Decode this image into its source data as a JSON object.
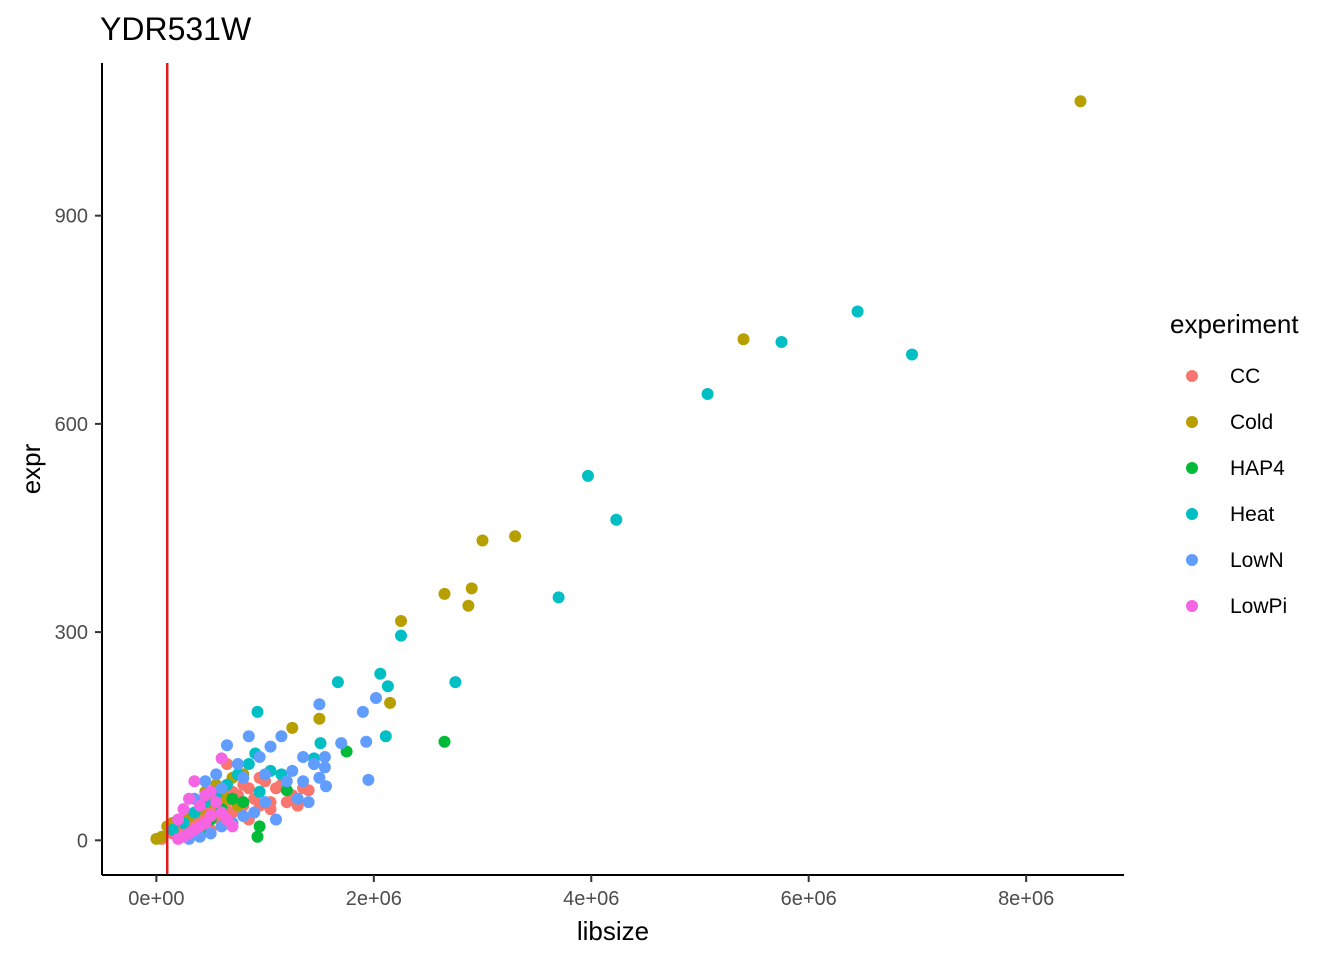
{
  "chart_data": {
    "type": "scatter",
    "title": "YDR531W",
    "xlabel": "libsize",
    "ylabel": "expr",
    "xlim": [
      -500000,
      8900000
    ],
    "ylim": [
      -50,
      1120
    ],
    "x_ticks": [
      0,
      2000000,
      4000000,
      6000000,
      8000000
    ],
    "x_tick_labels": [
      "0e+00",
      "2e+06",
      "4e+06",
      "6e+06",
      "8e+06"
    ],
    "y_ticks": [
      0,
      300,
      600,
      900
    ],
    "y_tick_labels": [
      "0",
      "300",
      "600",
      "900"
    ],
    "grid": false,
    "vline": {
      "x": 100000,
      "color": "#e31a1c"
    },
    "legend": {
      "title": "experiment",
      "position": "right"
    },
    "series": [
      {
        "name": "CC",
        "color": "#F8766D",
        "points": [
          [
            50000,
            2
          ],
          [
            150000,
            10
          ],
          [
            200000,
            15
          ],
          [
            250000,
            20
          ],
          [
            300000,
            30
          ],
          [
            350000,
            35
          ],
          [
            400000,
            25
          ],
          [
            450000,
            40
          ],
          [
            500000,
            50
          ],
          [
            550000,
            45
          ],
          [
            600000,
            60
          ],
          [
            650000,
            55
          ],
          [
            700000,
            70
          ],
          [
            750000,
            65
          ],
          [
            800000,
            80
          ],
          [
            850000,
            75
          ],
          [
            900000,
            60
          ],
          [
            950000,
            90
          ],
          [
            1000000,
            85
          ],
          [
            1050000,
            55
          ],
          [
            1100000,
            75
          ],
          [
            1150000,
            80
          ],
          [
            1200000,
            55
          ],
          [
            1250000,
            65
          ],
          [
            1300000,
            50
          ],
          [
            1350000,
            75
          ],
          [
            1400000,
            72
          ],
          [
            300000,
            5
          ],
          [
            400000,
            10
          ],
          [
            500000,
            15
          ],
          [
            600000,
            25
          ],
          [
            700000,
            40
          ],
          [
            800000,
            50
          ],
          [
            650000,
            110
          ],
          [
            350000,
            20
          ],
          [
            450000,
            30
          ],
          [
            550000,
            35
          ],
          [
            750000,
            45
          ],
          [
            850000,
            30
          ],
          [
            950000,
            50
          ],
          [
            1050000,
            45
          ]
        ]
      },
      {
        "name": "Cold",
        "color": "#B79F00",
        "points": [
          [
            8500000,
            1065
          ],
          [
            5400000,
            722
          ],
          [
            3300000,
            438
          ],
          [
            3000000,
            432
          ],
          [
            2900000,
            363
          ],
          [
            2650000,
            355
          ],
          [
            2870000,
            338
          ],
          [
            2250000,
            316
          ],
          [
            2150000,
            198
          ],
          [
            1500000,
            175
          ],
          [
            1250000,
            162
          ],
          [
            0,
            2
          ],
          [
            50000,
            5
          ],
          [
            100000,
            20
          ],
          [
            150000,
            25
          ],
          [
            300000,
            35
          ],
          [
            400000,
            45
          ],
          [
            500000,
            55
          ],
          [
            600000,
            70
          ],
          [
            700000,
            90
          ],
          [
            800000,
            95
          ],
          [
            450000,
            70
          ],
          [
            550000,
            80
          ],
          [
            650000,
            60
          ],
          [
            750000,
            50
          ]
        ]
      },
      {
        "name": "HAP4",
        "color": "#00BA38",
        "points": [
          [
            2650000,
            142
          ],
          [
            1750000,
            128
          ],
          [
            1200000,
            72
          ],
          [
            950000,
            20
          ],
          [
            930000,
            5
          ],
          [
            700000,
            60
          ],
          [
            500000,
            30
          ],
          [
            400000,
            15
          ],
          [
            300000,
            10
          ],
          [
            600000,
            45
          ],
          [
            800000,
            55
          ]
        ]
      },
      {
        "name": "Heat",
        "color": "#00BFC4",
        "points": [
          [
            6450000,
            762
          ],
          [
            5750000,
            718
          ],
          [
            6950000,
            700
          ],
          [
            5070000,
            643
          ],
          [
            3970000,
            525
          ],
          [
            4230000,
            462
          ],
          [
            3700000,
            350
          ],
          [
            2250000,
            295
          ],
          [
            2750000,
            228
          ],
          [
            2060000,
            240
          ],
          [
            1670000,
            228
          ],
          [
            2130000,
            222
          ],
          [
            2110000,
            150
          ],
          [
            1510000,
            140
          ],
          [
            1450000,
            118
          ],
          [
            930000,
            185
          ],
          [
            910000,
            125
          ],
          [
            850000,
            110
          ],
          [
            750000,
            95
          ],
          [
            650000,
            80
          ],
          [
            550000,
            65
          ],
          [
            450000,
            55
          ],
          [
            350000,
            40
          ],
          [
            250000,
            25
          ],
          [
            150000,
            15
          ],
          [
            950000,
            70
          ],
          [
            1050000,
            100
          ],
          [
            1150000,
            95
          ]
        ]
      },
      {
        "name": "LowN",
        "color": "#619CFF",
        "points": [
          [
            1500000,
            196
          ],
          [
            2020000,
            205
          ],
          [
            1900000,
            185
          ],
          [
            1930000,
            142
          ],
          [
            1700000,
            140
          ],
          [
            1550000,
            120
          ],
          [
            1450000,
            110
          ],
          [
            1350000,
            120
          ],
          [
            1250000,
            100
          ],
          [
            1150000,
            150
          ],
          [
            1050000,
            135
          ],
          [
            950000,
            120
          ],
          [
            850000,
            150
          ],
          [
            750000,
            110
          ],
          [
            650000,
            137
          ],
          [
            550000,
            95
          ],
          [
            450000,
            85
          ],
          [
            350000,
            60
          ],
          [
            1950000,
            87
          ],
          [
            1560000,
            78
          ],
          [
            1500000,
            90
          ],
          [
            1300000,
            60
          ],
          [
            1100000,
            30
          ],
          [
            1000000,
            55
          ],
          [
            900000,
            40
          ],
          [
            800000,
            35
          ],
          [
            700000,
            25
          ],
          [
            600000,
            20
          ],
          [
            500000,
            10
          ],
          [
            400000,
            5
          ],
          [
            300000,
            2
          ],
          [
            1400000,
            55
          ],
          [
            1200000,
            85
          ],
          [
            1000000,
            95
          ],
          [
            800000,
            90
          ],
          [
            600000,
            75
          ],
          [
            1350000,
            85
          ],
          [
            1550000,
            105
          ]
        ]
      },
      {
        "name": "LowPi",
        "color": "#F564E3",
        "points": [
          [
            600000,
            118
          ],
          [
            350000,
            85
          ],
          [
            300000,
            60
          ],
          [
            250000,
            45
          ],
          [
            200000,
            30
          ],
          [
            400000,
            50
          ],
          [
            450000,
            65
          ],
          [
            500000,
            70
          ],
          [
            550000,
            55
          ],
          [
            250000,
            5
          ],
          [
            300000,
            10
          ],
          [
            350000,
            15
          ],
          [
            400000,
            20
          ],
          [
            450000,
            25
          ],
          [
            500000,
            35
          ],
          [
            200000,
            2
          ],
          [
            600000,
            40
          ],
          [
            650000,
            30
          ],
          [
            700000,
            20
          ]
        ]
      }
    ]
  }
}
